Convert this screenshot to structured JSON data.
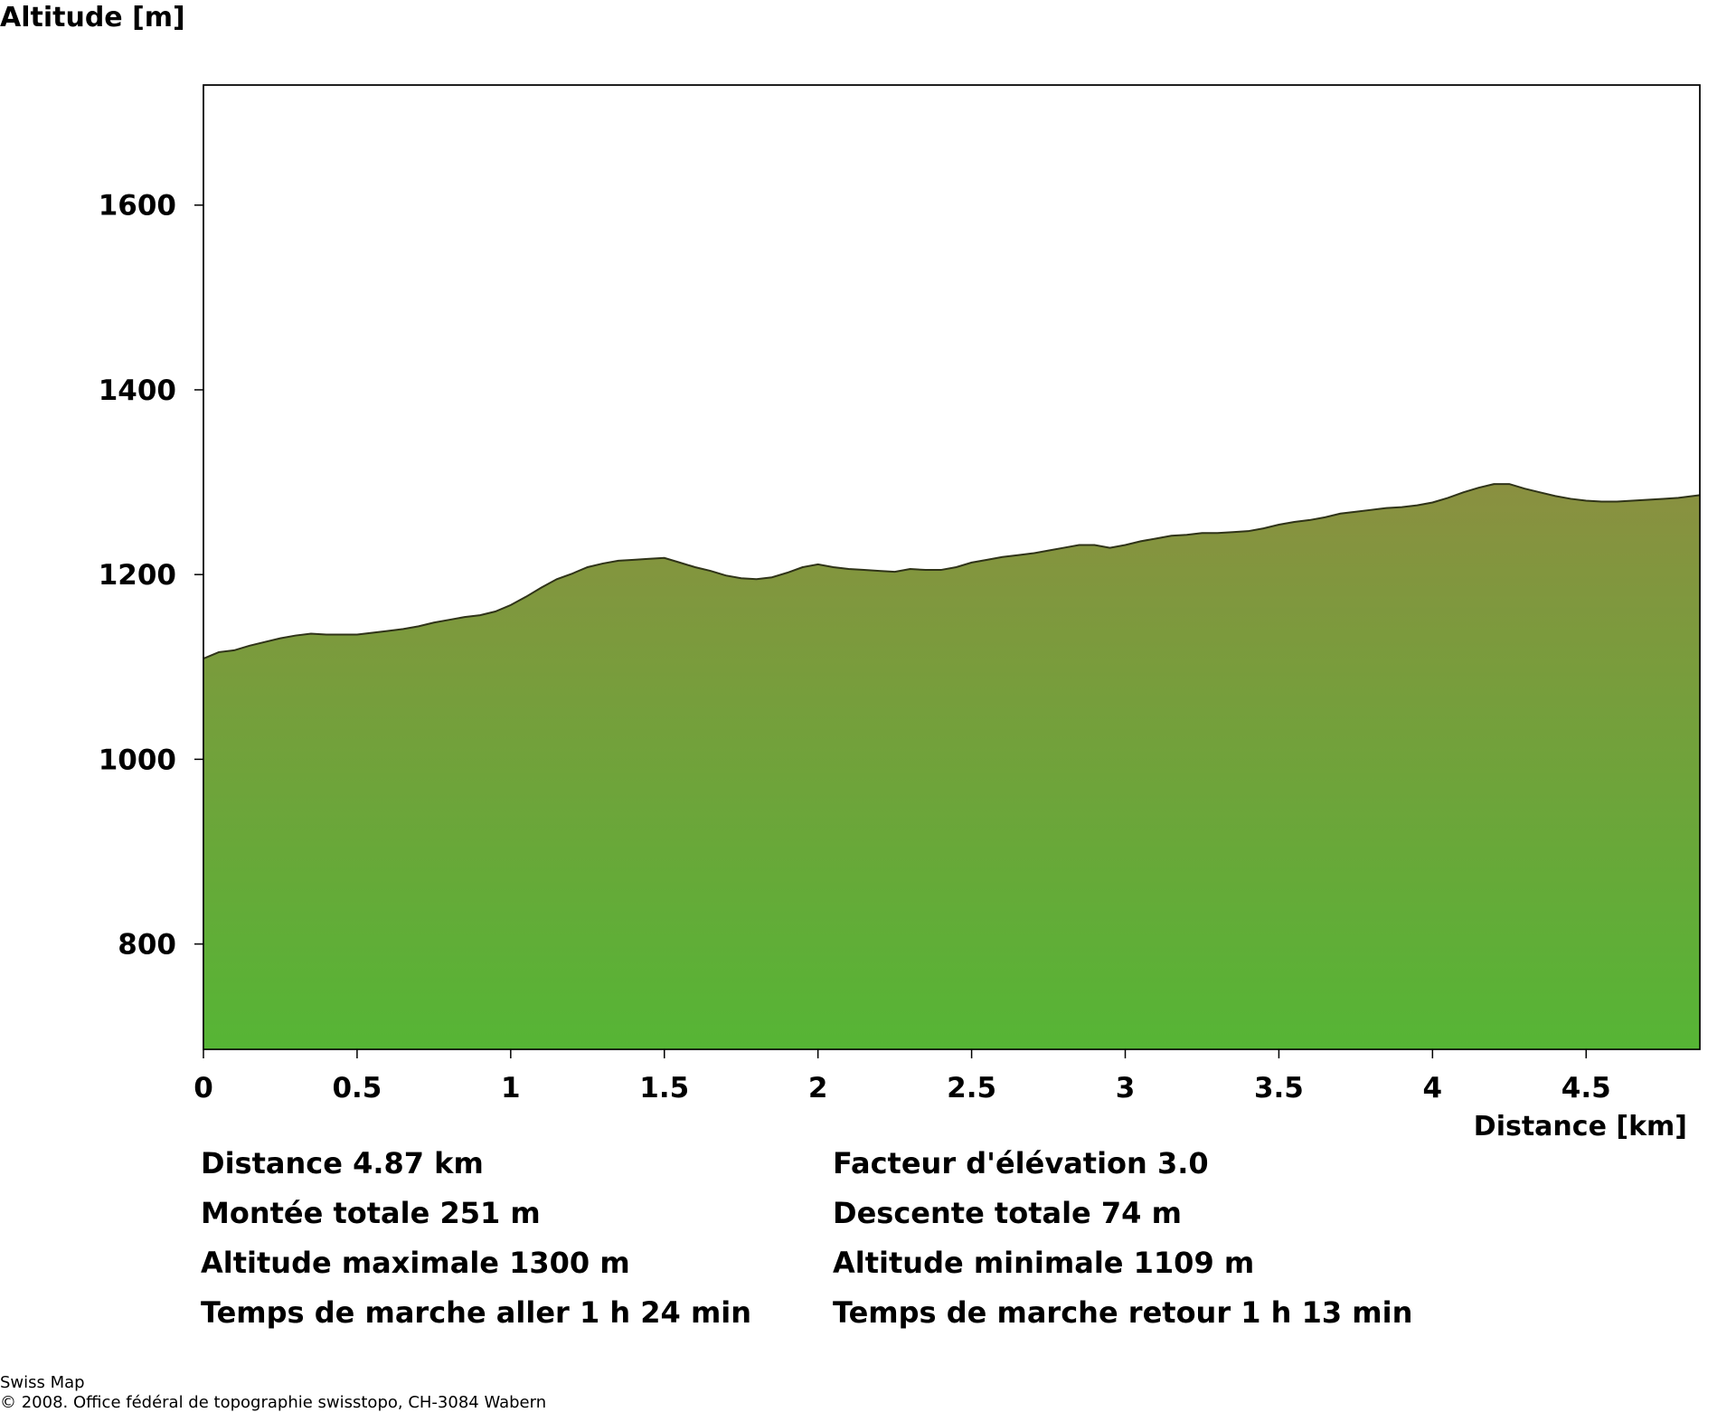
{
  "chart_data": {
    "type": "area",
    "ylabel": "Altitude [m]",
    "xlabel": "Distance [km]",
    "xlim": [
      0,
      4.87
    ],
    "ylim": [
      686,
      1730
    ],
    "x_ticks": [
      "0",
      "0.5",
      "1",
      "1.5",
      "2",
      "2.5",
      "3",
      "3.5",
      "4",
      "4.5"
    ],
    "y_ticks": [
      "800",
      "1000",
      "1200",
      "1400",
      "1600"
    ],
    "grid": false,
    "fill_gradient": [
      "#8a9040",
      "#56b535"
    ],
    "line_color": "#2f3318",
    "series": [
      {
        "x": [
          0,
          0.05,
          0.1,
          0.15,
          0.2,
          0.25,
          0.3,
          0.35,
          0.4,
          0.45,
          0.5,
          0.55,
          0.6,
          0.65,
          0.7,
          0.75,
          0.8,
          0.85,
          0.9,
          0.95,
          1.0,
          1.05,
          1.1,
          1.15,
          1.2,
          1.25,
          1.3,
          1.35,
          1.4,
          1.45,
          1.5,
          1.55,
          1.6,
          1.65,
          1.7,
          1.75,
          1.8,
          1.85,
          1.9,
          1.95,
          2.0,
          2.05,
          2.1,
          2.15,
          2.2,
          2.25,
          2.3,
          2.35,
          2.4,
          2.45,
          2.5,
          2.55,
          2.6,
          2.65,
          2.7,
          2.75,
          2.8,
          2.85,
          2.9,
          2.95,
          3.0,
          3.05,
          3.1,
          3.15,
          3.2,
          3.25,
          3.3,
          3.35,
          3.4,
          3.45,
          3.5,
          3.55,
          3.6,
          3.65,
          3.7,
          3.75,
          3.8,
          3.85,
          3.9,
          3.95,
          4.0,
          4.05,
          4.1,
          4.15,
          4.2,
          4.25,
          4.3,
          4.35,
          4.4,
          4.45,
          4.5,
          4.55,
          4.6,
          4.65,
          4.7,
          4.75,
          4.8,
          4.87
        ],
        "values": [
          1109,
          1116,
          1118,
          1123,
          1127,
          1131,
          1134,
          1136,
          1135,
          1135,
          1135,
          1137,
          1139,
          1141,
          1144,
          1148,
          1151,
          1154,
          1156,
          1160,
          1167,
          1176,
          1186,
          1195,
          1201,
          1208,
          1212,
          1215,
          1216,
          1217,
          1218,
          1213,
          1208,
          1204,
          1199,
          1196,
          1195,
          1197,
          1202,
          1208,
          1211,
          1208,
          1206,
          1205,
          1204,
          1203,
          1206,
          1205,
          1205,
          1208,
          1213,
          1216,
          1219,
          1221,
          1223,
          1226,
          1229,
          1232,
          1232,
          1229,
          1232,
          1236,
          1239,
          1242,
          1243,
          1245,
          1245,
          1246,
          1247,
          1250,
          1254,
          1257,
          1259,
          1262,
          1266,
          1268,
          1270,
          1272,
          1273,
          1275,
          1278,
          1283,
          1289,
          1294,
          1298,
          1298,
          1293,
          1289,
          1285,
          1282,
          1280,
          1279,
          1279,
          1280,
          1281,
          1282,
          1283,
          1286
        ]
      }
    ]
  },
  "stats": {
    "left": [
      "Distance 4.87 km",
      "Montée totale  251 m",
      "Altitude maximale  1300 m",
      "Temps de marche aller  1 h 24 min"
    ],
    "right": [
      "Facteur d'élévation 3.0",
      "Descente totale  74 m",
      "Altitude minimale  1109 m",
      "Temps de marche retour  1 h 13 min"
    ]
  },
  "footer": {
    "line1": "Swiss Map",
    "line2": "© 2008. Office fédéral de topographie swisstopo, CH-3084 Wabern"
  }
}
